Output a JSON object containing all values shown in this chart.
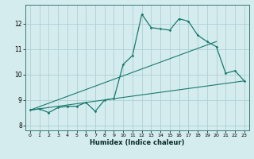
{
  "xlabel": "Humidex (Indice chaleur)",
  "bg_color": "#d4ecee",
  "grid_color": "#aed0d4",
  "line_color": "#1a7a6e",
  "xlim": [
    -0.5,
    23.5
  ],
  "ylim": [
    7.8,
    12.75
  ],
  "xticks": [
    0,
    1,
    2,
    3,
    4,
    5,
    6,
    7,
    8,
    9,
    10,
    11,
    12,
    13,
    14,
    15,
    16,
    17,
    18,
    19,
    20,
    21,
    22,
    23
  ],
  "yticks": [
    8,
    9,
    10,
    11,
    12
  ],
  "main_x": [
    0,
    1,
    2,
    3,
    4,
    5,
    6,
    7,
    8,
    9,
    10,
    11,
    12,
    13,
    14,
    15,
    16,
    17,
    18,
    19,
    20,
    21,
    22,
    23
  ],
  "main_y": [
    8.6,
    8.65,
    8.5,
    8.7,
    8.75,
    8.75,
    8.9,
    8.55,
    9.0,
    9.05,
    10.4,
    10.75,
    12.38,
    11.85,
    11.8,
    11.75,
    12.2,
    12.1,
    11.55,
    11.3,
    11.1,
    10.05,
    10.15,
    9.75
  ],
  "line2_x": [
    0,
    23
  ],
  "line2_y": [
    8.6,
    9.75
  ],
  "line3_x": [
    0,
    20
  ],
  "line3_y": [
    8.6,
    11.3
  ]
}
